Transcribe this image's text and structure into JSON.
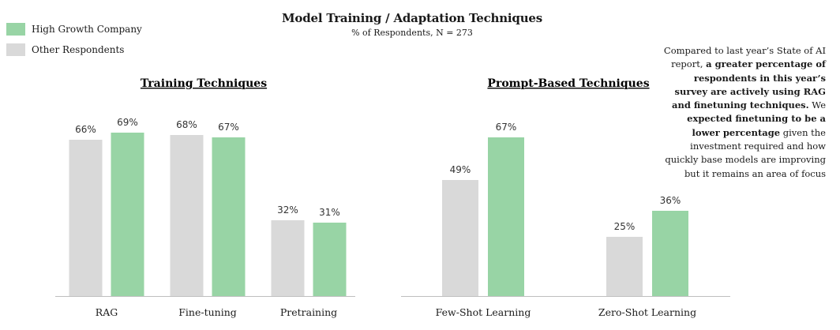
{
  "legend": {
    "items": [
      {
        "label": "High Growth Company",
        "color": "#98d4a5"
      },
      {
        "label": "Other Respondents",
        "color": "#d9d9d9"
      }
    ]
  },
  "header": {
    "title": "Model Training / Adaptation Techniques",
    "subtitle": "% of Respondents, N = 273"
  },
  "annotation": {
    "segments": [
      {
        "text": "Compared to last year’s State of AI report, ",
        "bold": false
      },
      {
        "text": "a greater percentage of respondents in this year’s survey are actively using RAG and finetuning techniques.",
        "bold": true
      },
      {
        "text": " We ",
        "bold": false
      },
      {
        "text": "expected finetuning to be a lower percentage",
        "bold": true
      },
      {
        "text": " given the investment required and how quickly base models are improving but it remains an area of focus",
        "bold": false
      }
    ]
  },
  "chart_data": [
    {
      "type": "bar",
      "title": "Training Techniques",
      "categories": [
        "RAG",
        "Fine-tuning",
        "Pretraining"
      ],
      "series": [
        {
          "name": "Other Respondents",
          "color": "#d9d9d9",
          "values": [
            66,
            68,
            32
          ]
        },
        {
          "name": "High Growth Company",
          "color": "#98d4a5",
          "values": [
            69,
            67,
            31
          ]
        }
      ],
      "value_suffix": "%",
      "ylim": [
        0,
        100
      ]
    },
    {
      "type": "bar",
      "title": "Prompt-Based Techniques",
      "categories": [
        "Few-Shot Learning",
        "Zero-Shot Learning"
      ],
      "series": [
        {
          "name": "Other Respondents",
          "color": "#d9d9d9",
          "values": [
            49,
            25
          ]
        },
        {
          "name": "High Growth Company",
          "color": "#98d4a5",
          "values": [
            67,
            36
          ]
        }
      ],
      "value_suffix": "%",
      "ylim": [
        0,
        100
      ]
    }
  ]
}
